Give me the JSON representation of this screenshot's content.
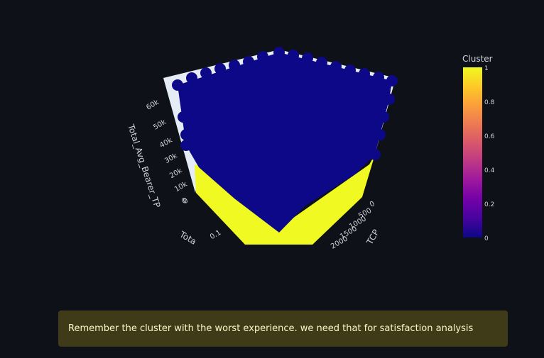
{
  "chart_data": {
    "type": "scatter3d",
    "axes": {
      "x": {
        "title": "Total_Avg_RTT",
        "title_visible": "Tota",
        "ticks": [
          "0",
          "0.1"
        ]
      },
      "y": {
        "title": "TCP",
        "ticks": [
          "0",
          "500",
          "1000",
          "1500",
          "2000"
        ]
      },
      "z": {
        "title": "Total_Avg_Bearer_TP",
        "ticks": [
          "0",
          "10k",
          "20k",
          "30k",
          "40k",
          "50k",
          "60k"
        ]
      }
    },
    "series": [
      {
        "cluster": 0,
        "color": "#0d0887"
      },
      {
        "cluster": 1,
        "color": "#f0f921"
      }
    ],
    "colorbar": {
      "title": "Cluster",
      "ticks": [
        "0",
        "0.2",
        "0.4",
        "0.6",
        "0.8",
        "1"
      ],
      "range": [
        0,
        1
      ],
      "colorscale": [
        "#0d0887",
        "#46039f",
        "#7201a8",
        "#9c179e",
        "#bd3786",
        "#d8576b",
        "#ed7953",
        "#fb9f3a",
        "#fdca26",
        "#f0f921"
      ]
    }
  },
  "colors": {
    "background": "#0e1117",
    "scene_wall": "#e5ecf6",
    "info_bg": "#3f3a17",
    "info_text": "#fbf7c5"
  },
  "info": {
    "text": "Remember the cluster with the worst experience. we need that for satisfaction analysis"
  }
}
